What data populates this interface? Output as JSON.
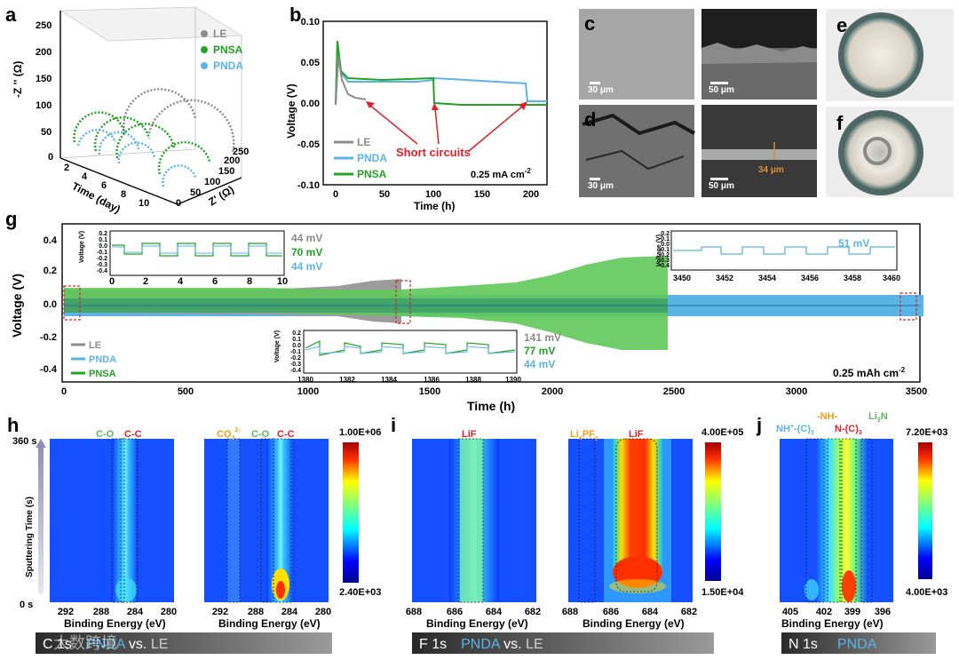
{
  "panels": {
    "a": "a",
    "b": "b",
    "c": "c",
    "d": "d",
    "e": "e",
    "f": "f",
    "g": "g",
    "h": "h",
    "i": "i",
    "j": "j"
  },
  "panel_a": {
    "legend": [
      "LE",
      "PNSA",
      "PNDA"
    ],
    "z_label": "-Z '' (Ω)",
    "x_label": "Z' (Ω)",
    "time_label": "Time (day)",
    "z_ticks": [
      "0",
      "50",
      "100",
      "150",
      "200",
      "250"
    ],
    "x_ticks": [
      "0",
      "50",
      "100",
      "150",
      "200",
      "250"
    ],
    "time_ticks": [
      "2",
      "4",
      "6",
      "8",
      "10"
    ]
  },
  "panel_b": {
    "ylabel": "Voltage (V)",
    "xlabel": "Time (h)",
    "yticks": [
      "0.10",
      "0.05",
      "0.00",
      "-0.05",
      "-0.10"
    ],
    "xticks": [
      "0",
      "50",
      "100",
      "150",
      "200"
    ],
    "legend": [
      "LE",
      "PNDA",
      "PNSA"
    ],
    "annotation": "Short circuits",
    "current": "0.25 mA cm",
    "current_sup": "-2"
  },
  "micro": {
    "c1": "30 μm",
    "c2": "50 μm",
    "d1": "30 μm",
    "d2": "50 μm",
    "d2_thick": "34 μm"
  },
  "panel_g": {
    "ylabel": "Voltage (V)",
    "xlabel": "Time (h)",
    "yticks": [
      "0.4",
      "0.2",
      "0.0",
      "-0.2",
      "-0.4"
    ],
    "xticks": [
      "0",
      "500",
      "1000",
      "1500",
      "2000",
      "2500",
      "3000",
      "3500"
    ],
    "legend": [
      "LE",
      "PNDA",
      "PNSA"
    ],
    "capacity": "0.25 mAh cm",
    "capacity_sup": "-2",
    "inset1": {
      "ylabel": "Voltage (V)",
      "yticks": [
        "0.2",
        "0.1",
        "0.0",
        "-0.1",
        "-0.2",
        "-0.3",
        "-0.4"
      ],
      "xticks": [
        "0",
        "2",
        "4",
        "6",
        "8",
        "10"
      ],
      "values": [
        "44 mV",
        "70 mV",
        "44 mV"
      ]
    },
    "inset2": {
      "ylabel": "Voltage (V)",
      "yticks": [
        "0.2",
        "0.1",
        "0.0",
        "-0.1",
        "-0.2",
        "-0.3",
        "-0.4"
      ],
      "xticks": [
        "1380",
        "1382",
        "1384",
        "1386",
        "1388",
        "1390"
      ],
      "values": [
        "141 mV",
        "77 mV",
        "44 mV"
      ]
    },
    "inset3": {
      "ylabel": "Voltage (V)",
      "yticks": [
        "0.2",
        "0.1",
        "0.0",
        "-0.1",
        "-0.2",
        "-0.3",
        "-0.4"
      ],
      "xticks": [
        "3450",
        "3452",
        "3454",
        "3456",
        "3458",
        "3460"
      ],
      "values": [
        "51 mV"
      ]
    }
  },
  "panel_h": {
    "ylabel": "Sputtering Time (s)",
    "top_time": "360 s",
    "bottom_time": "0 s",
    "xlabel": "Binding Energy (eV)",
    "xticks": [
      "292",
      "288",
      "284",
      "280"
    ],
    "map1_labels": [
      "C-O",
      "C-C"
    ],
    "map2_labels": [
      "CO",
      "C-O",
      "C-C"
    ],
    "co3_sub": "3",
    "co3_sup": "2-",
    "scale_max": "1.00E+06",
    "scale_min": "2.40E+03",
    "banner_label": "C 1s",
    "banner_a": "PNDA",
    "banner_vs": " vs. ",
    "banner_b": "LE"
  },
  "panel_i": {
    "xlabel": "Binding Energy (eV)",
    "xticks": [
      "688",
      "686",
      "684",
      "682"
    ],
    "map1_labels": [
      "LiF"
    ],
    "map2_labels": [
      "LiF"
    ],
    "lipf": "Li",
    "lipf_x": "x",
    "lipf_mid": "PF",
    "lipf_y": "y",
    "scale_max": "4.00E+05",
    "scale_min": "1.50E+04",
    "banner_label": "F 1s",
    "banner_a": "PNDA",
    "banner_vs": " vs. ",
    "banner_b": "LE"
  },
  "panel_j": {
    "xlabel": "Binding Energy (eV)",
    "xticks": [
      "405",
      "402",
      "399",
      "396"
    ],
    "labels": [
      "NH",
      "-(C)",
      "-NH-",
      "N-(C)",
      "Li",
      "N"
    ],
    "scale_max": "7.20E+03",
    "scale_min": "4.00E+03",
    "banner_label": "N 1s",
    "banner_a": "PNDA"
  },
  "watermark": "大数跨境",
  "colors": {
    "LE": "#8c8c8c",
    "PNDA": "#5ab4e6",
    "PNSA": "#23a323"
  }
}
